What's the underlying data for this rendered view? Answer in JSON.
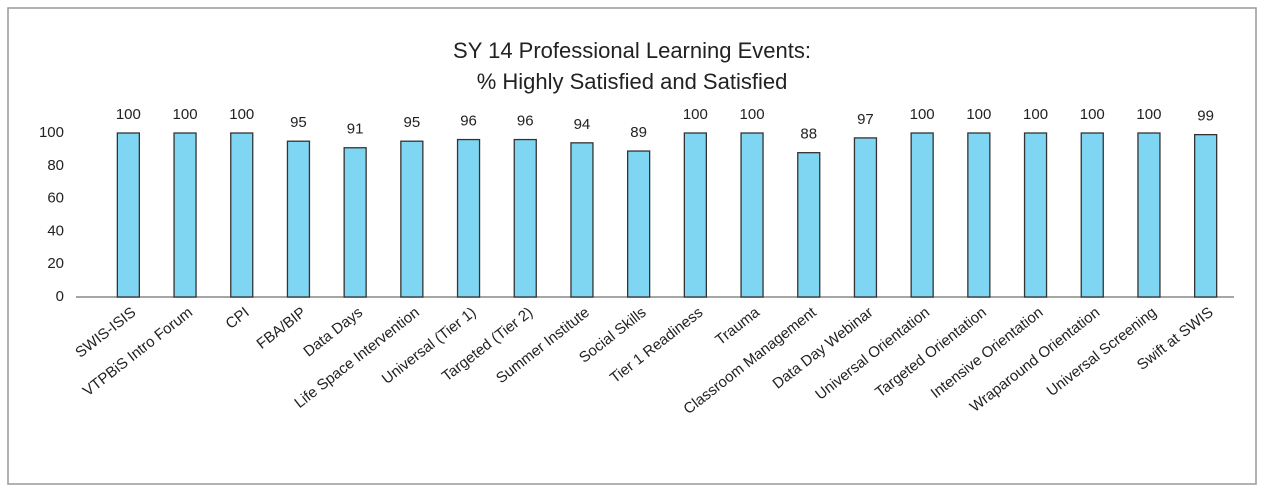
{
  "chart_data": {
    "type": "bar",
    "title": "SY 14 Professional Learning Events:",
    "subtitle": "% Highly Satisfied and Satisfied",
    "categories": [
      "SWIS-ISIS",
      "VTPBiS Intro Forum",
      "CPI",
      "FBA/BIP",
      "Data Days",
      "Life Space Intervention",
      "Universal (Tier 1)",
      "Targeted (Tier 2)",
      "Summer Institute",
      "Social Skills",
      "Tier 1 Readiness",
      "Trauma",
      "Classroom Management",
      "Data Day Webinar",
      "Universal Orientation",
      "Targeted Orientation",
      "Intensive Orientation",
      "Wraparound Orientation",
      "Universal Screening",
      "Swift at SWIS"
    ],
    "values": [
      100,
      100,
      100,
      95,
      91,
      95,
      96,
      96,
      94,
      89,
      100,
      100,
      88,
      97,
      100,
      100,
      100,
      100,
      100,
      99
    ],
    "color": "#7fd6f2",
    "ylim": [
      0,
      100
    ],
    "yticks": [
      0,
      20,
      40,
      60,
      80,
      100
    ],
    "grid": false
  }
}
